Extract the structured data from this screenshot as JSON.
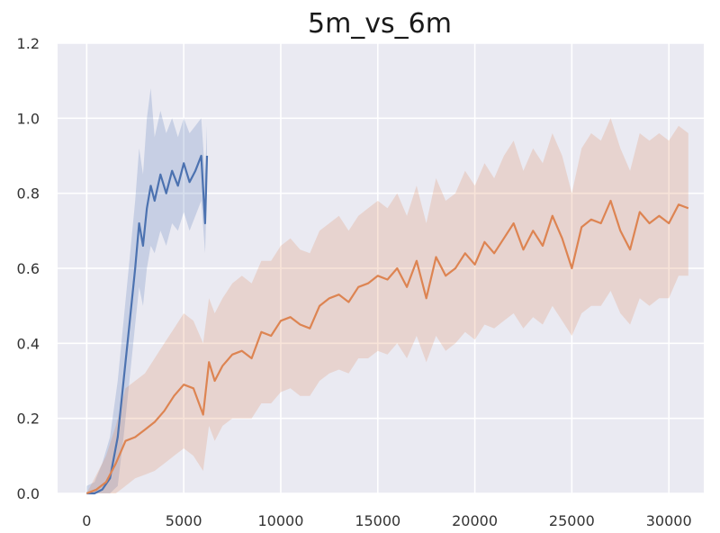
{
  "chart_data": {
    "type": "line",
    "title": "5m_vs_6m",
    "xlabel": "",
    "ylabel": "",
    "xlim": [
      -1500,
      31800
    ],
    "ylim": [
      0,
      1.2
    ],
    "xticks": [
      0,
      5000,
      10000,
      15000,
      20000,
      25000,
      30000
    ],
    "xtick_labels": [
      "0",
      "5000",
      "10000",
      "15000",
      "20000",
      "25000",
      "30000"
    ],
    "yticks": [
      0,
      0.2,
      0.4,
      0.6,
      0.8,
      1.0,
      1.2
    ],
    "ytick_labels": [
      "0.0",
      "0.2",
      "0.4",
      "0.6",
      "0.8",
      "1.0",
      "1.2"
    ],
    "grid": true,
    "background": "#eaeaf2",
    "series": [
      {
        "color": "#4c72b0",
        "band_color": "#4c72b0",
        "x": [
          0,
          400,
          800,
          1200,
          1600,
          1900,
          2200,
          2500,
          2700,
          2900,
          3100,
          3300,
          3500,
          3800,
          4100,
          4400,
          4700,
          5000,
          5300,
          5600,
          5900,
          6100,
          6200
        ],
        "y": [
          0.0,
          0.0,
          0.01,
          0.04,
          0.15,
          0.3,
          0.45,
          0.6,
          0.72,
          0.66,
          0.76,
          0.82,
          0.78,
          0.85,
          0.8,
          0.86,
          0.82,
          0.88,
          0.83,
          0.86,
          0.9,
          0.72,
          0.9
        ],
        "lower": [
          0.0,
          0.0,
          0.0,
          0.0,
          0.02,
          0.15,
          0.3,
          0.45,
          0.55,
          0.5,
          0.6,
          0.66,
          0.64,
          0.7,
          0.66,
          0.72,
          0.7,
          0.75,
          0.7,
          0.74,
          0.78,
          0.64,
          0.82
        ],
        "upper": [
          0.02,
          0.03,
          0.08,
          0.15,
          0.3,
          0.46,
          0.62,
          0.78,
          0.92,
          0.85,
          1.0,
          1.08,
          0.95,
          1.02,
          0.96,
          1.0,
          0.95,
          1.0,
          0.96,
          0.98,
          1.0,
          0.85,
          0.98
        ]
      },
      {
        "color": "#dd8452",
        "band_color": "#dd8452",
        "x": [
          0,
          500,
          1000,
          1500,
          2000,
          2500,
          3000,
          3500,
          4000,
          4500,
          5000,
          5500,
          6000,
          6300,
          6600,
          7000,
          7500,
          8000,
          8500,
          9000,
          9500,
          10000,
          10500,
          11000,
          11500,
          12000,
          12500,
          13000,
          13500,
          14000,
          14500,
          15000,
          15500,
          16000,
          16500,
          17000,
          17500,
          18000,
          18500,
          19000,
          19500,
          20000,
          20500,
          21000,
          21500,
          22000,
          22500,
          23000,
          23500,
          24000,
          24500,
          25000,
          25500,
          26000,
          26500,
          27000,
          27500,
          28000,
          28500,
          29000,
          29500,
          30000,
          30500,
          31000
        ],
        "y": [
          0.0,
          0.01,
          0.03,
          0.08,
          0.14,
          0.15,
          0.17,
          0.19,
          0.22,
          0.26,
          0.29,
          0.28,
          0.21,
          0.35,
          0.3,
          0.34,
          0.37,
          0.38,
          0.36,
          0.43,
          0.42,
          0.46,
          0.47,
          0.45,
          0.44,
          0.5,
          0.52,
          0.53,
          0.51,
          0.55,
          0.56,
          0.58,
          0.57,
          0.6,
          0.55,
          0.62,
          0.52,
          0.63,
          0.58,
          0.6,
          0.64,
          0.61,
          0.67,
          0.64,
          0.68,
          0.72,
          0.65,
          0.7,
          0.66,
          0.74,
          0.68,
          0.6,
          0.71,
          0.73,
          0.72,
          0.78,
          0.7,
          0.65,
          0.75,
          0.72,
          0.74,
          0.72,
          0.77,
          0.76
        ],
        "lower": [
          0.0,
          0.0,
          0.0,
          0.0,
          0.02,
          0.04,
          0.05,
          0.06,
          0.08,
          0.1,
          0.12,
          0.1,
          0.06,
          0.18,
          0.14,
          0.18,
          0.2,
          0.2,
          0.2,
          0.24,
          0.24,
          0.27,
          0.28,
          0.26,
          0.26,
          0.3,
          0.32,
          0.33,
          0.32,
          0.36,
          0.36,
          0.38,
          0.37,
          0.4,
          0.36,
          0.42,
          0.35,
          0.42,
          0.38,
          0.4,
          0.43,
          0.41,
          0.45,
          0.44,
          0.46,
          0.48,
          0.44,
          0.47,
          0.45,
          0.5,
          0.46,
          0.42,
          0.48,
          0.5,
          0.5,
          0.54,
          0.48,
          0.45,
          0.52,
          0.5,
          0.52,
          0.52,
          0.58,
          0.58
        ],
        "upper": [
          0.0,
          0.05,
          0.1,
          0.18,
          0.28,
          0.3,
          0.32,
          0.36,
          0.4,
          0.44,
          0.48,
          0.46,
          0.4,
          0.52,
          0.48,
          0.52,
          0.56,
          0.58,
          0.56,
          0.62,
          0.62,
          0.66,
          0.68,
          0.65,
          0.64,
          0.7,
          0.72,
          0.74,
          0.7,
          0.74,
          0.76,
          0.78,
          0.76,
          0.8,
          0.74,
          0.82,
          0.72,
          0.84,
          0.78,
          0.8,
          0.86,
          0.82,
          0.88,
          0.84,
          0.9,
          0.94,
          0.86,
          0.92,
          0.88,
          0.96,
          0.9,
          0.8,
          0.92,
          0.96,
          0.94,
          1.0,
          0.92,
          0.86,
          0.96,
          0.94,
          0.96,
          0.94,
          0.98,
          0.96
        ]
      }
    ]
  }
}
